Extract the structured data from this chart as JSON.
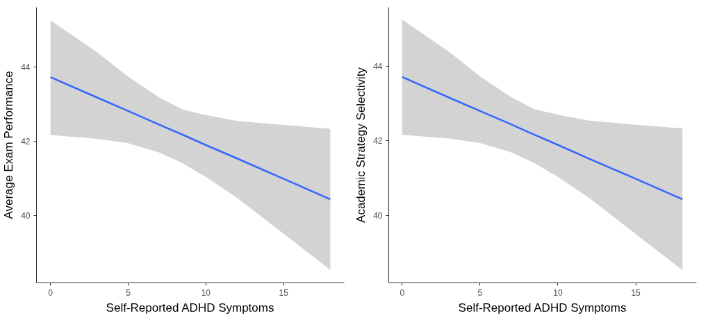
{
  "chart_data": [
    {
      "type": "line",
      "xlabel": "Self-Reported ADHD Symptoms",
      "ylabel": "Average Exam Performance",
      "xlim": [
        -0.9,
        18.9
      ],
      "ylim": [
        38.18,
        45.6
      ],
      "xticks": [
        0,
        5,
        10,
        15
      ],
      "yticks": [
        40,
        42,
        44
      ],
      "grid": false,
      "marker": "none",
      "line_style": "solid",
      "x": [
        0,
        3,
        5,
        7,
        8.5,
        10,
        12,
        15,
        18
      ],
      "series": [
        {
          "color": "#3366ff",
          "values": [
            43.72,
            43.17,
            42.81,
            42.44,
            42.17,
            41.89,
            41.53,
            40.98,
            40.43
          ],
          "lower": [
            42.16,
            42.06,
            41.94,
            41.69,
            41.4,
            41.03,
            40.47,
            39.5,
            38.53
          ],
          "upper": [
            45.25,
            44.39,
            43.73,
            43.17,
            42.85,
            42.7,
            42.54,
            42.43,
            42.33
          ]
        }
      ]
    },
    {
      "type": "line",
      "xlabel": "Self-Reported ADHD Symptoms",
      "ylabel": "Academic Strategy Selectivity",
      "xlim": [
        -0.86,
        18.9
      ],
      "ylim": [
        38.19,
        45.58
      ],
      "xticks": [
        0,
        5,
        10,
        15
      ],
      "yticks": [
        40,
        42,
        44
      ],
      "grid": false,
      "marker": "none",
      "line_style": "solid",
      "x": [
        0,
        3,
        5,
        7,
        8.5,
        10,
        12,
        15,
        18
      ],
      "series": [
        {
          "color": "#3366ff",
          "values": [
            43.71,
            43.16,
            42.8,
            42.44,
            42.16,
            41.89,
            41.52,
            40.98,
            40.43
          ],
          "lower": [
            42.16,
            42.06,
            41.94,
            41.69,
            41.4,
            41.03,
            40.47,
            39.5,
            38.53
          ],
          "upper": [
            45.25,
            44.39,
            43.73,
            43.17,
            42.85,
            42.7,
            42.54,
            42.43,
            42.33
          ]
        }
      ]
    }
  ]
}
